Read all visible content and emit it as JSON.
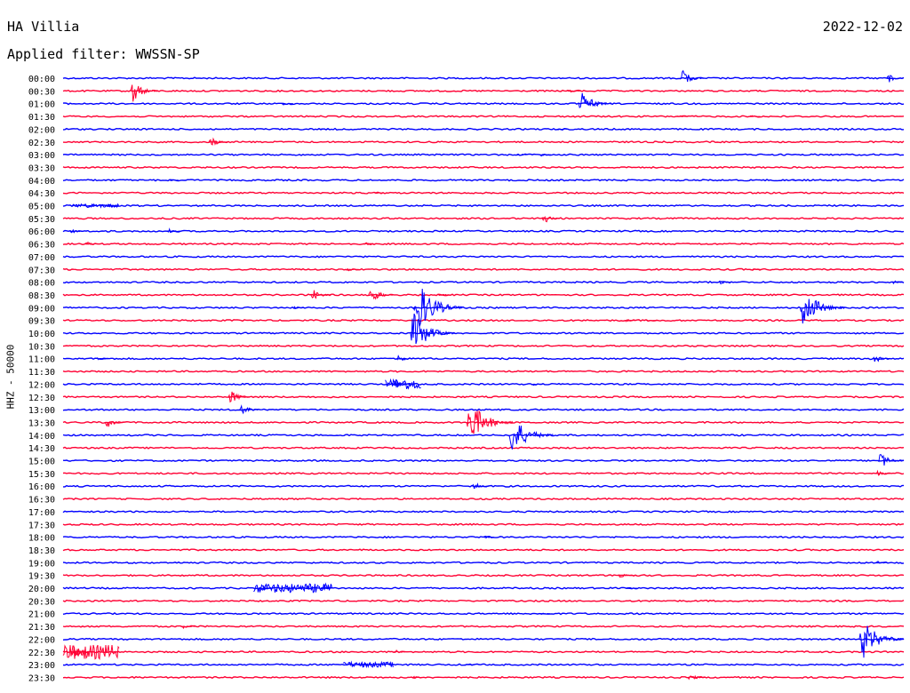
{
  "header": {
    "station": "HA Villia",
    "date": "2022-12-02",
    "filter": "Applied filter: WWSSN-SP"
  },
  "colors": {
    "blue": "#0000ff",
    "red": "#ff0033"
  },
  "chart_data": {
    "type": "line",
    "title": "HA Villia",
    "date": "2022-12-02",
    "subtitle": "Applied filter: WWSSN-SP",
    "ylabel": "HHZ - 50000",
    "row_labels": [
      "00:00",
      "00:30",
      "01:00",
      "01:30",
      "02:00",
      "02:30",
      "03:00",
      "03:30",
      "04:00",
      "04:30",
      "05:00",
      "05:30",
      "06:00",
      "06:30",
      "07:00",
      "07:30",
      "08:00",
      "08:30",
      "09:00",
      "09:30",
      "10:00",
      "10:30",
      "11:00",
      "11:30",
      "12:00",
      "12:30",
      "13:00",
      "13:30",
      "14:00",
      "14:30",
      "15:00",
      "15:30",
      "16:00",
      "16:30",
      "17:00",
      "17:30",
      "18:00",
      "18:30",
      "19:00",
      "19:30",
      "20:00",
      "20:30",
      "21:00",
      "21:30",
      "22:00",
      "22:30",
      "23:00",
      "23:30"
    ],
    "row_colors": [
      "blue",
      "red"
    ],
    "events": [
      {
        "row": 0,
        "minute": 22.0,
        "amp": 14
      },
      {
        "row": 0,
        "minute": 29.8,
        "amp": 8
      },
      {
        "row": 1,
        "minute": 2.4,
        "amp": 17
      },
      {
        "row": 1,
        "minute": 18.0,
        "amp": 5
      },
      {
        "row": 2,
        "minute": 18.4,
        "amp": 20
      },
      {
        "row": 2,
        "minute": 7.8,
        "amp": 4
      },
      {
        "row": 3,
        "minute": 21.9,
        "amp": 3
      },
      {
        "row": 3,
        "minute": 24.5,
        "amp": 3
      },
      {
        "row": 4,
        "minute": 9.1,
        "amp": 3
      },
      {
        "row": 4,
        "minute": 17.6,
        "amp": 3
      },
      {
        "row": 5,
        "minute": 5.2,
        "amp": 10
      },
      {
        "row": 6,
        "minute": 16.2,
        "amp": 3
      },
      {
        "row": 6,
        "minute": 17.0,
        "amp": 4
      },
      {
        "row": 8,
        "minute": 3.8,
        "amp": 2
      },
      {
        "row": 8,
        "minute": 26.0,
        "amp": 2
      },
      {
        "row": 9,
        "minute": 11.1,
        "amp": 2
      },
      {
        "row": 10,
        "minute": 1.6,
        "amp": 3
      },
      {
        "row": 11,
        "minute": 17.1,
        "amp": 9
      },
      {
        "row": 12,
        "minute": 0.2,
        "amp": 6
      },
      {
        "row": 12,
        "minute": 3.7,
        "amp": 5
      },
      {
        "row": 13,
        "minute": 0.8,
        "amp": 4
      },
      {
        "row": 13,
        "minute": 10.7,
        "amp": 4
      },
      {
        "row": 15,
        "minute": 10.1,
        "amp": 4
      },
      {
        "row": 15,
        "minute": 24.5,
        "amp": 3
      },
      {
        "row": 16,
        "minute": 23.4,
        "amp": 5
      },
      {
        "row": 16,
        "minute": 29.6,
        "amp": 4
      },
      {
        "row": 17,
        "minute": 8.8,
        "amp": 12
      },
      {
        "row": 17,
        "minute": 10.9,
        "amp": 14
      },
      {
        "row": 17,
        "minute": 13.4,
        "amp": 4
      },
      {
        "row": 18,
        "minute": 12.5,
        "amp": 42
      },
      {
        "row": 18,
        "minute": 26.3,
        "amp": 30
      },
      {
        "row": 18,
        "minute": 8.2,
        "amp": 3
      },
      {
        "row": 19,
        "minute": 20.0,
        "amp": 4
      },
      {
        "row": 19,
        "minute": 20.8,
        "amp": 4
      },
      {
        "row": 20,
        "minute": 12.4,
        "amp": 30
      },
      {
        "row": 22,
        "minute": 1.2,
        "amp": 4
      },
      {
        "row": 22,
        "minute": 11.9,
        "amp": 8
      },
      {
        "row": 22,
        "minute": 28.9,
        "amp": 9
      },
      {
        "row": 24,
        "minute": 11.8,
        "amp": 8
      },
      {
        "row": 24,
        "minute": 16.7,
        "amp": 4
      },
      {
        "row": 25,
        "minute": 5.9,
        "amp": 12
      },
      {
        "row": 26,
        "minute": 6.3,
        "amp": 10
      },
      {
        "row": 27,
        "minute": 1.5,
        "amp": 10
      },
      {
        "row": 27,
        "minute": 14.4,
        "amp": 32
      },
      {
        "row": 28,
        "minute": 15.9,
        "amp": 30
      },
      {
        "row": 30,
        "minute": 29.5,
        "amp": 15
      },
      {
        "row": 31,
        "minute": 29.0,
        "amp": 6
      },
      {
        "row": 32,
        "minute": 14.6,
        "amp": 8
      },
      {
        "row": 36,
        "minute": 15.0,
        "amp": 3
      },
      {
        "row": 38,
        "minute": 29.0,
        "amp": 4
      },
      {
        "row": 39,
        "minute": 19.8,
        "amp": 6
      },
      {
        "row": 40,
        "minute": 7.0,
        "amp": 6
      },
      {
        "row": 40,
        "minute": 9.2,
        "amp": 4
      },
      {
        "row": 40,
        "minute": 20.1,
        "amp": 3
      },
      {
        "row": 42,
        "minute": 17.0,
        "amp": 3
      },
      {
        "row": 43,
        "minute": 4.2,
        "amp": 6
      },
      {
        "row": 44,
        "minute": 30.0,
        "amp": 30
      },
      {
        "row": 45,
        "minute": 0.3,
        "amp": 12
      },
      {
        "row": 45,
        "minute": 11.8,
        "amp": 4
      },
      {
        "row": 46,
        "minute": 10.6,
        "amp": 3
      },
      {
        "row": 46,
        "minute": 14.3,
        "amp": 3
      },
      {
        "row": 47,
        "minute": 12.4,
        "amp": 4
      },
      {
        "row": 47,
        "minute": 22.3,
        "amp": 8
      }
    ],
    "bursts": [
      {
        "row": 40,
        "minute_start": 6.8,
        "minute_end": 9.6,
        "amp": 5
      },
      {
        "row": 45,
        "minute_start": 0.0,
        "minute_end": 2.0,
        "amp": 8
      },
      {
        "row": 46,
        "minute_start": 10.0,
        "minute_end": 11.8,
        "amp": 3
      },
      {
        "row": 24,
        "minute_start": 11.5,
        "minute_end": 12.8,
        "amp": 6
      },
      {
        "row": 10,
        "minute_start": 0.3,
        "minute_end": 2.0,
        "amp": 2
      }
    ]
  }
}
